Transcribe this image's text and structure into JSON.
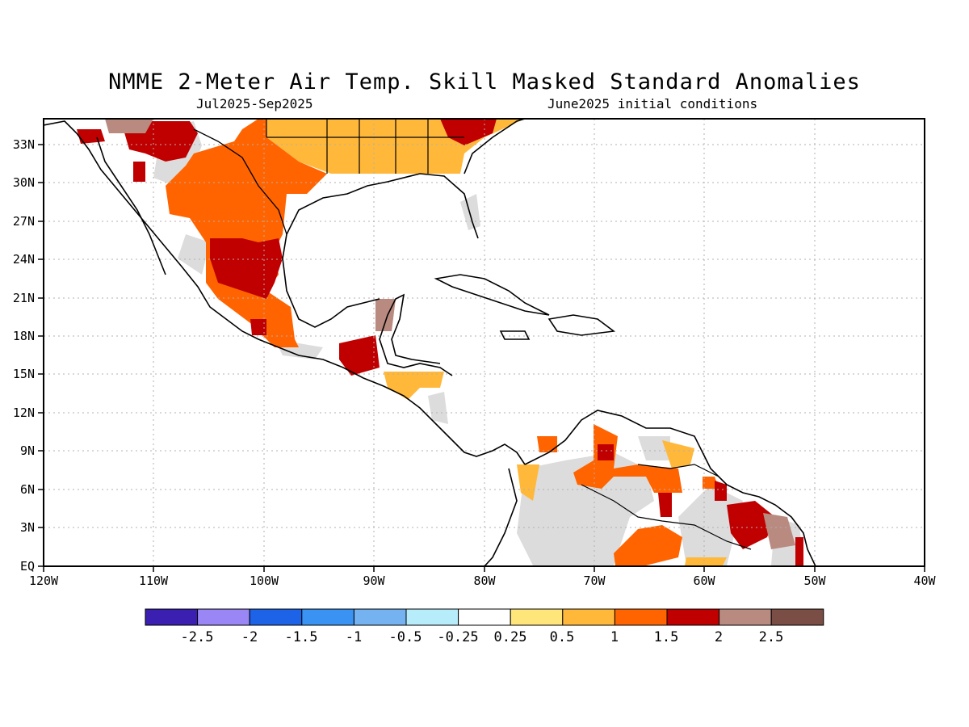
{
  "title": "NMME 2-Meter Air Temp. Skill Masked Standard Anomalies",
  "subtitle_left": "Jul2025-Sep2025",
  "subtitle_right": "June2025 initial conditions",
  "axes": {
    "lat_labels": [
      "33N",
      "30N",
      "27N",
      "24N",
      "21N",
      "18N",
      "15N",
      "12N",
      "9N",
      "6N",
      "3N",
      "EQ"
    ],
    "lon_labels": [
      "120W",
      "110W",
      "100W",
      "90W",
      "80W",
      "70W",
      "60W",
      "50W",
      "40W"
    ]
  },
  "colorbar": {
    "colors": [
      "#3a1fb0",
      "#9a86f5",
      "#1c63e8",
      "#3a92f2",
      "#74b2f2",
      "#b7ecfb",
      "#ffffff",
      "#ffe67a",
      "#ffb83a",
      "#ff6400",
      "#c00000",
      "#b88a80",
      "#7a4e44"
    ],
    "labels": [
      "-2.5",
      "-2",
      "-1.5",
      "-1",
      "-0.5",
      "-0.25",
      "0.25",
      "0.5",
      "1",
      "1.5",
      "2",
      "2.5"
    ]
  },
  "legend_colors": {
    "no_skill": "#dcdcdc",
    "coast": "#000000"
  }
}
